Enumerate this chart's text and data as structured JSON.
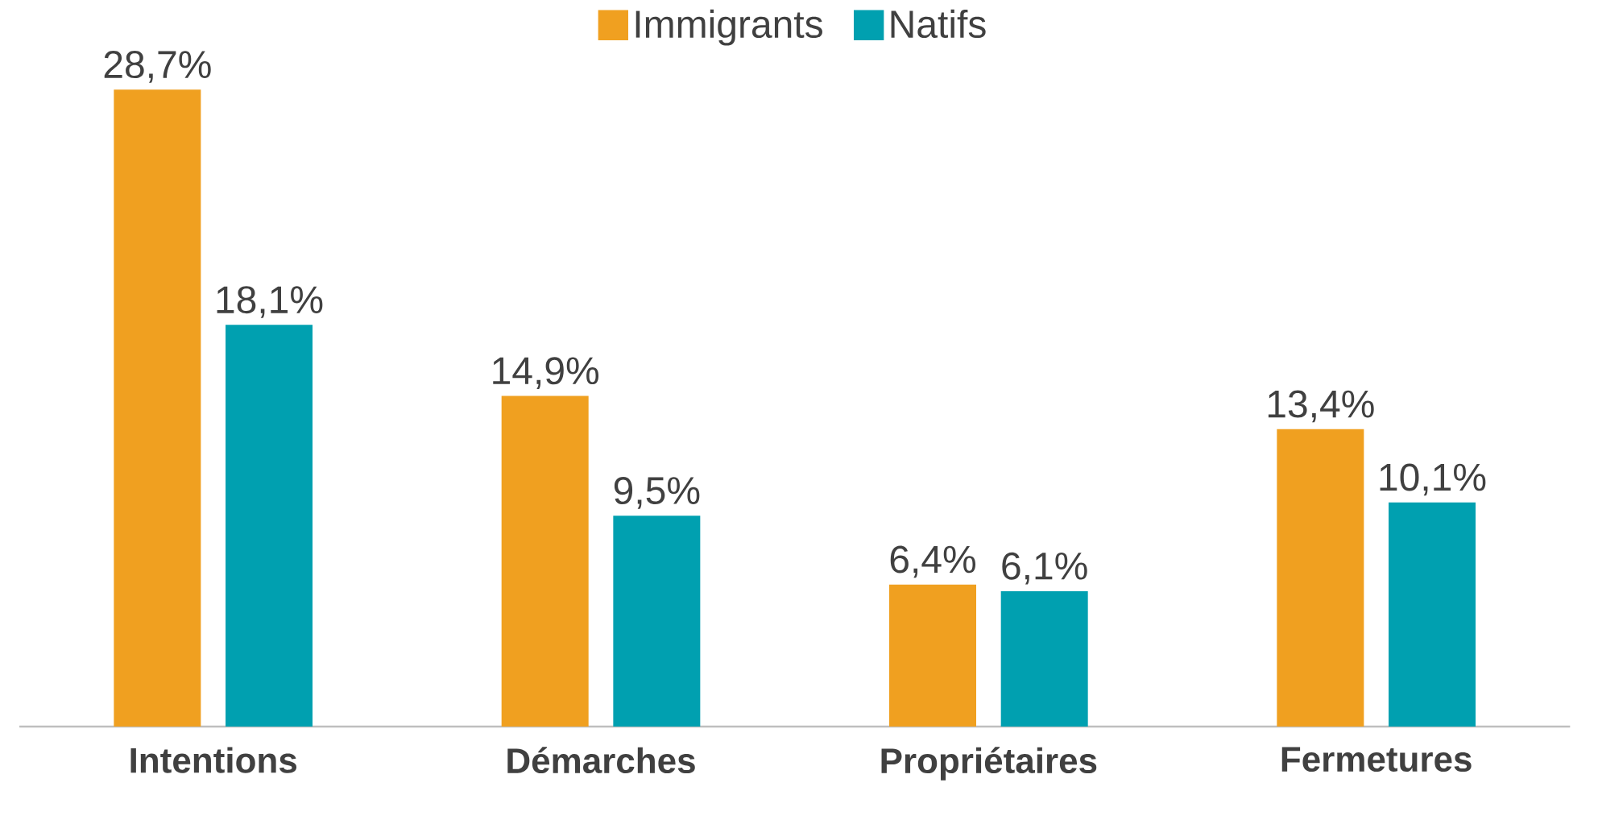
{
  "chart_data": {
    "type": "bar",
    "categories": [
      "Intentions",
      "Démarches",
      "Propriétaires",
      "Fermetures"
    ],
    "series": [
      {
        "name": "Immigrants",
        "color": "#f0a020",
        "values": [
          28.7,
          14.9,
          6.4,
          13.4
        ],
        "value_labels": [
          "28,7%",
          "14,9%",
          "6,4%",
          "13,4%"
        ]
      },
      {
        "name": "Natifs",
        "color": "#00a0b0",
        "values": [
          18.1,
          9.5,
          6.1,
          10.1
        ],
        "value_labels": [
          "18,1%",
          "9,5%",
          "6,1%",
          "10,1%"
        ]
      }
    ],
    "legend": "top"
  }
}
